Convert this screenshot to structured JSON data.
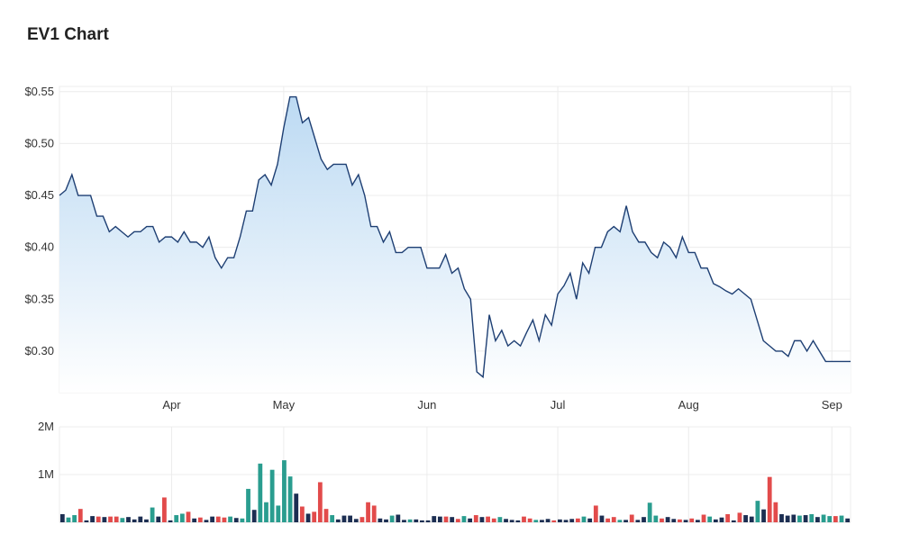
{
  "title": "EV1 Chart",
  "colors": {
    "line": "#1e3f73",
    "area_top": "#b9d8f2",
    "area_bottom": "#ffffff",
    "grid": "#ececec",
    "vol_up": "#2a9d8f",
    "vol_down": "#e24b4b",
    "vol_neutral": "#1c2e52"
  },
  "chart_data": [
    {
      "type": "area",
      "title": "EV1 Chart",
      "xlabel": "",
      "ylabel": "",
      "ylim": [
        0.26,
        0.555
      ],
      "y_ticks": [
        {
          "value": 0.55,
          "label": "$0.55"
        },
        {
          "value": 0.5,
          "label": "$0.50"
        },
        {
          "value": 0.45,
          "label": "$0.45"
        },
        {
          "value": 0.4,
          "label": "$0.40"
        },
        {
          "value": 0.35,
          "label": "$0.35"
        },
        {
          "value": 0.3,
          "label": "$0.30"
        }
      ],
      "x_ticks": [
        {
          "index": 18,
          "label": "Apr"
        },
        {
          "index": 36,
          "label": "May"
        },
        {
          "index": 59,
          "label": "Jun"
        },
        {
          "index": 80,
          "label": "Jul"
        },
        {
          "index": 101,
          "label": "Aug"
        },
        {
          "index": 124,
          "label": "Sep"
        }
      ],
      "grid": true,
      "values": [
        0.45,
        0.455,
        0.47,
        0.45,
        0.45,
        0.45,
        0.43,
        0.43,
        0.415,
        0.42,
        0.415,
        0.41,
        0.415,
        0.415,
        0.42,
        0.42,
        0.405,
        0.41,
        0.41,
        0.405,
        0.415,
        0.405,
        0.405,
        0.4,
        0.41,
        0.39,
        0.38,
        0.39,
        0.39,
        0.41,
        0.435,
        0.435,
        0.465,
        0.47,
        0.46,
        0.48,
        0.515,
        0.545,
        0.545,
        0.52,
        0.525,
        0.505,
        0.485,
        0.475,
        0.48,
        0.48,
        0.48,
        0.46,
        0.47,
        0.45,
        0.42,
        0.42,
        0.405,
        0.415,
        0.395,
        0.395,
        0.4,
        0.4,
        0.4,
        0.38,
        0.38,
        0.38,
        0.393,
        0.375,
        0.38,
        0.36,
        0.35,
        0.28,
        0.275,
        0.335,
        0.31,
        0.32,
        0.305,
        0.31,
        0.305,
        0.318,
        0.33,
        0.31,
        0.335,
        0.325,
        0.355,
        0.363,
        0.375,
        0.35,
        0.385,
        0.375,
        0.4,
        0.4,
        0.415,
        0.42,
        0.415,
        0.44,
        0.415,
        0.405,
        0.405,
        0.395,
        0.39,
        0.405,
        0.4,
        0.39,
        0.41,
        0.395,
        0.395,
        0.38,
        0.38,
        0.365,
        0.362,
        0.358,
        0.355,
        0.36,
        0.355,
        0.35,
        0.33,
        0.31,
        0.305,
        0.3,
        0.3,
        0.295,
        0.31,
        0.31,
        0.3,
        0.31,
        0.3,
        0.29,
        0.29,
        0.29,
        0.29,
        0.29
      ]
    },
    {
      "type": "bar",
      "title": "",
      "ylim": [
        0,
        2000000
      ],
      "y_ticks": [
        {
          "value": 2000000,
          "label": "2M"
        },
        {
          "value": 1000000,
          "label": "1M"
        }
      ],
      "grid": true,
      "values": [
        170000,
        100000,
        150000,
        280000,
        40000,
        130000,
        120000,
        110000,
        120000,
        120000,
        90000,
        110000,
        60000,
        120000,
        60000,
        310000,
        120000,
        520000,
        40000,
        150000,
        180000,
        220000,
        80000,
        100000,
        50000,
        120000,
        120000,
        100000,
        120000,
        90000,
        80000,
        700000,
        260000,
        1230000,
        420000,
        1100000,
        350000,
        1300000,
        960000,
        600000,
        330000,
        180000,
        220000,
        840000,
        280000,
        150000,
        60000,
        140000,
        140000,
        70000,
        110000,
        420000,
        350000,
        80000,
        60000,
        140000,
        160000,
        50000,
        60000,
        60000,
        40000,
        40000,
        130000,
        120000,
        120000,
        110000,
        70000,
        130000,
        80000,
        150000,
        110000,
        120000,
        80000,
        110000,
        70000,
        50000,
        40000,
        120000,
        80000,
        50000,
        50000,
        70000,
        40000,
        60000,
        50000,
        70000,
        80000,
        120000,
        80000,
        350000,
        140000,
        80000,
        110000,
        50000,
        50000,
        160000,
        50000,
        110000,
        410000,
        140000,
        80000,
        110000,
        70000,
        60000,
        50000,
        80000,
        50000,
        160000,
        120000,
        60000,
        100000,
        170000,
        40000,
        200000,
        150000,
        120000,
        450000,
        270000,
        950000,
        420000,
        170000,
        140000,
        160000,
        140000,
        150000,
        170000,
        110000,
        160000,
        130000,
        130000,
        140000,
        80000
      ],
      "value_direction": [
        "n",
        "u",
        "u",
        "d",
        "n",
        "n",
        "d",
        "n",
        "d",
        "d",
        "u",
        "n",
        "n",
        "n",
        "n",
        "u",
        "n",
        "d",
        "n",
        "u",
        "u",
        "d",
        "n",
        "d",
        "n",
        "n",
        "d",
        "d",
        "u",
        "n",
        "u",
        "u",
        "n",
        "u",
        "u",
        "u",
        "u",
        "u",
        "u",
        "n",
        "d",
        "n",
        "d",
        "d",
        "d",
        "u",
        "n",
        "n",
        "n",
        "n",
        "d",
        "d",
        "d",
        "n",
        "n",
        "u",
        "n",
        "n",
        "u",
        "n",
        "n",
        "n",
        "n",
        "n",
        "d",
        "n",
        "d",
        "u",
        "n",
        "d",
        "n",
        "d",
        "d",
        "u",
        "n",
        "n",
        "n",
        "d",
        "d",
        "u",
        "n",
        "n",
        "d",
        "n",
        "n",
        "n",
        "d",
        "u",
        "n",
        "d",
        "n",
        "d",
        "d",
        "u",
        "n",
        "d",
        "n",
        "n",
        "u",
        "u",
        "d",
        "n",
        "n",
        "d",
        "n",
        "d",
        "n",
        "d",
        "u",
        "n",
        "n",
        "d",
        "n",
        "d",
        "n",
        "n",
        "u",
        "n",
        "d",
        "d",
        "n",
        "n",
        "n",
        "u",
        "n",
        "u",
        "n",
        "u",
        "u",
        "d",
        "u",
        "n"
      ]
    }
  ]
}
